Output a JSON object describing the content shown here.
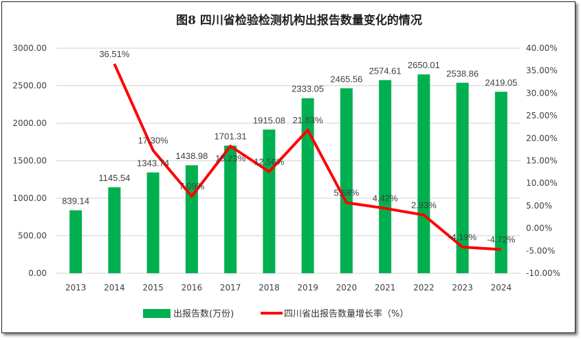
{
  "chart_data": {
    "type": "bar+line",
    "title": "图8   四川省检验检测机构出报告数量变化的情况",
    "categories": [
      "2013",
      "2014",
      "2015",
      "2016",
      "2017",
      "2018",
      "2019",
      "2020",
      "2021",
      "2022",
      "2023",
      "2024"
    ],
    "series": [
      {
        "name": "出报告数(万份)",
        "type": "bar",
        "axis": "left",
        "color": "#00B050",
        "values": [
          839.14,
          1145.54,
          1343.74,
          1438.98,
          1701.31,
          1915.08,
          2333.05,
          2465.56,
          2574.61,
          2650.01,
          2538.86,
          2419.05
        ],
        "labels": [
          "839.14",
          "1145.54",
          "1343.74",
          "1438.98",
          "1701.31",
          "1915.08",
          "2333.05",
          "2465.56",
          "2574.61",
          "2650.01",
          "2538.86",
          "2419.05"
        ]
      },
      {
        "name": "四川省出报告数量增长率（%）",
        "type": "line",
        "axis": "right",
        "color": "#FF0000",
        "values": [
          null,
          36.51,
          17.3,
          7.09,
          18.23,
          12.56,
          21.83,
          5.68,
          4.42,
          2.93,
          -4.19,
          -4.72
        ],
        "labels": [
          "",
          "36.51%",
          "17.30%",
          "7.09%",
          "18.23%",
          "12.56%",
          "21.83%",
          "5.68%",
          "4.42%",
          "2.93%",
          "-4.19%",
          "-4.72%"
        ]
      }
    ],
    "y_left": {
      "range": [
        0,
        3000
      ],
      "ticks": [
        "0.00",
        "500.00",
        "1000.00",
        "1500.00",
        "2000.00",
        "2500.00",
        "3000.00"
      ]
    },
    "y_right": {
      "range": [
        -10,
        40
      ],
      "ticks": [
        "-10.00%",
        "-5.00%",
        "0.00%",
        "5.00%",
        "10.00%",
        "15.00%",
        "20.00%",
        "25.00%",
        "30.00%",
        "35.00%",
        "40.00%"
      ]
    },
    "grid": true,
    "legend": "bottom"
  }
}
